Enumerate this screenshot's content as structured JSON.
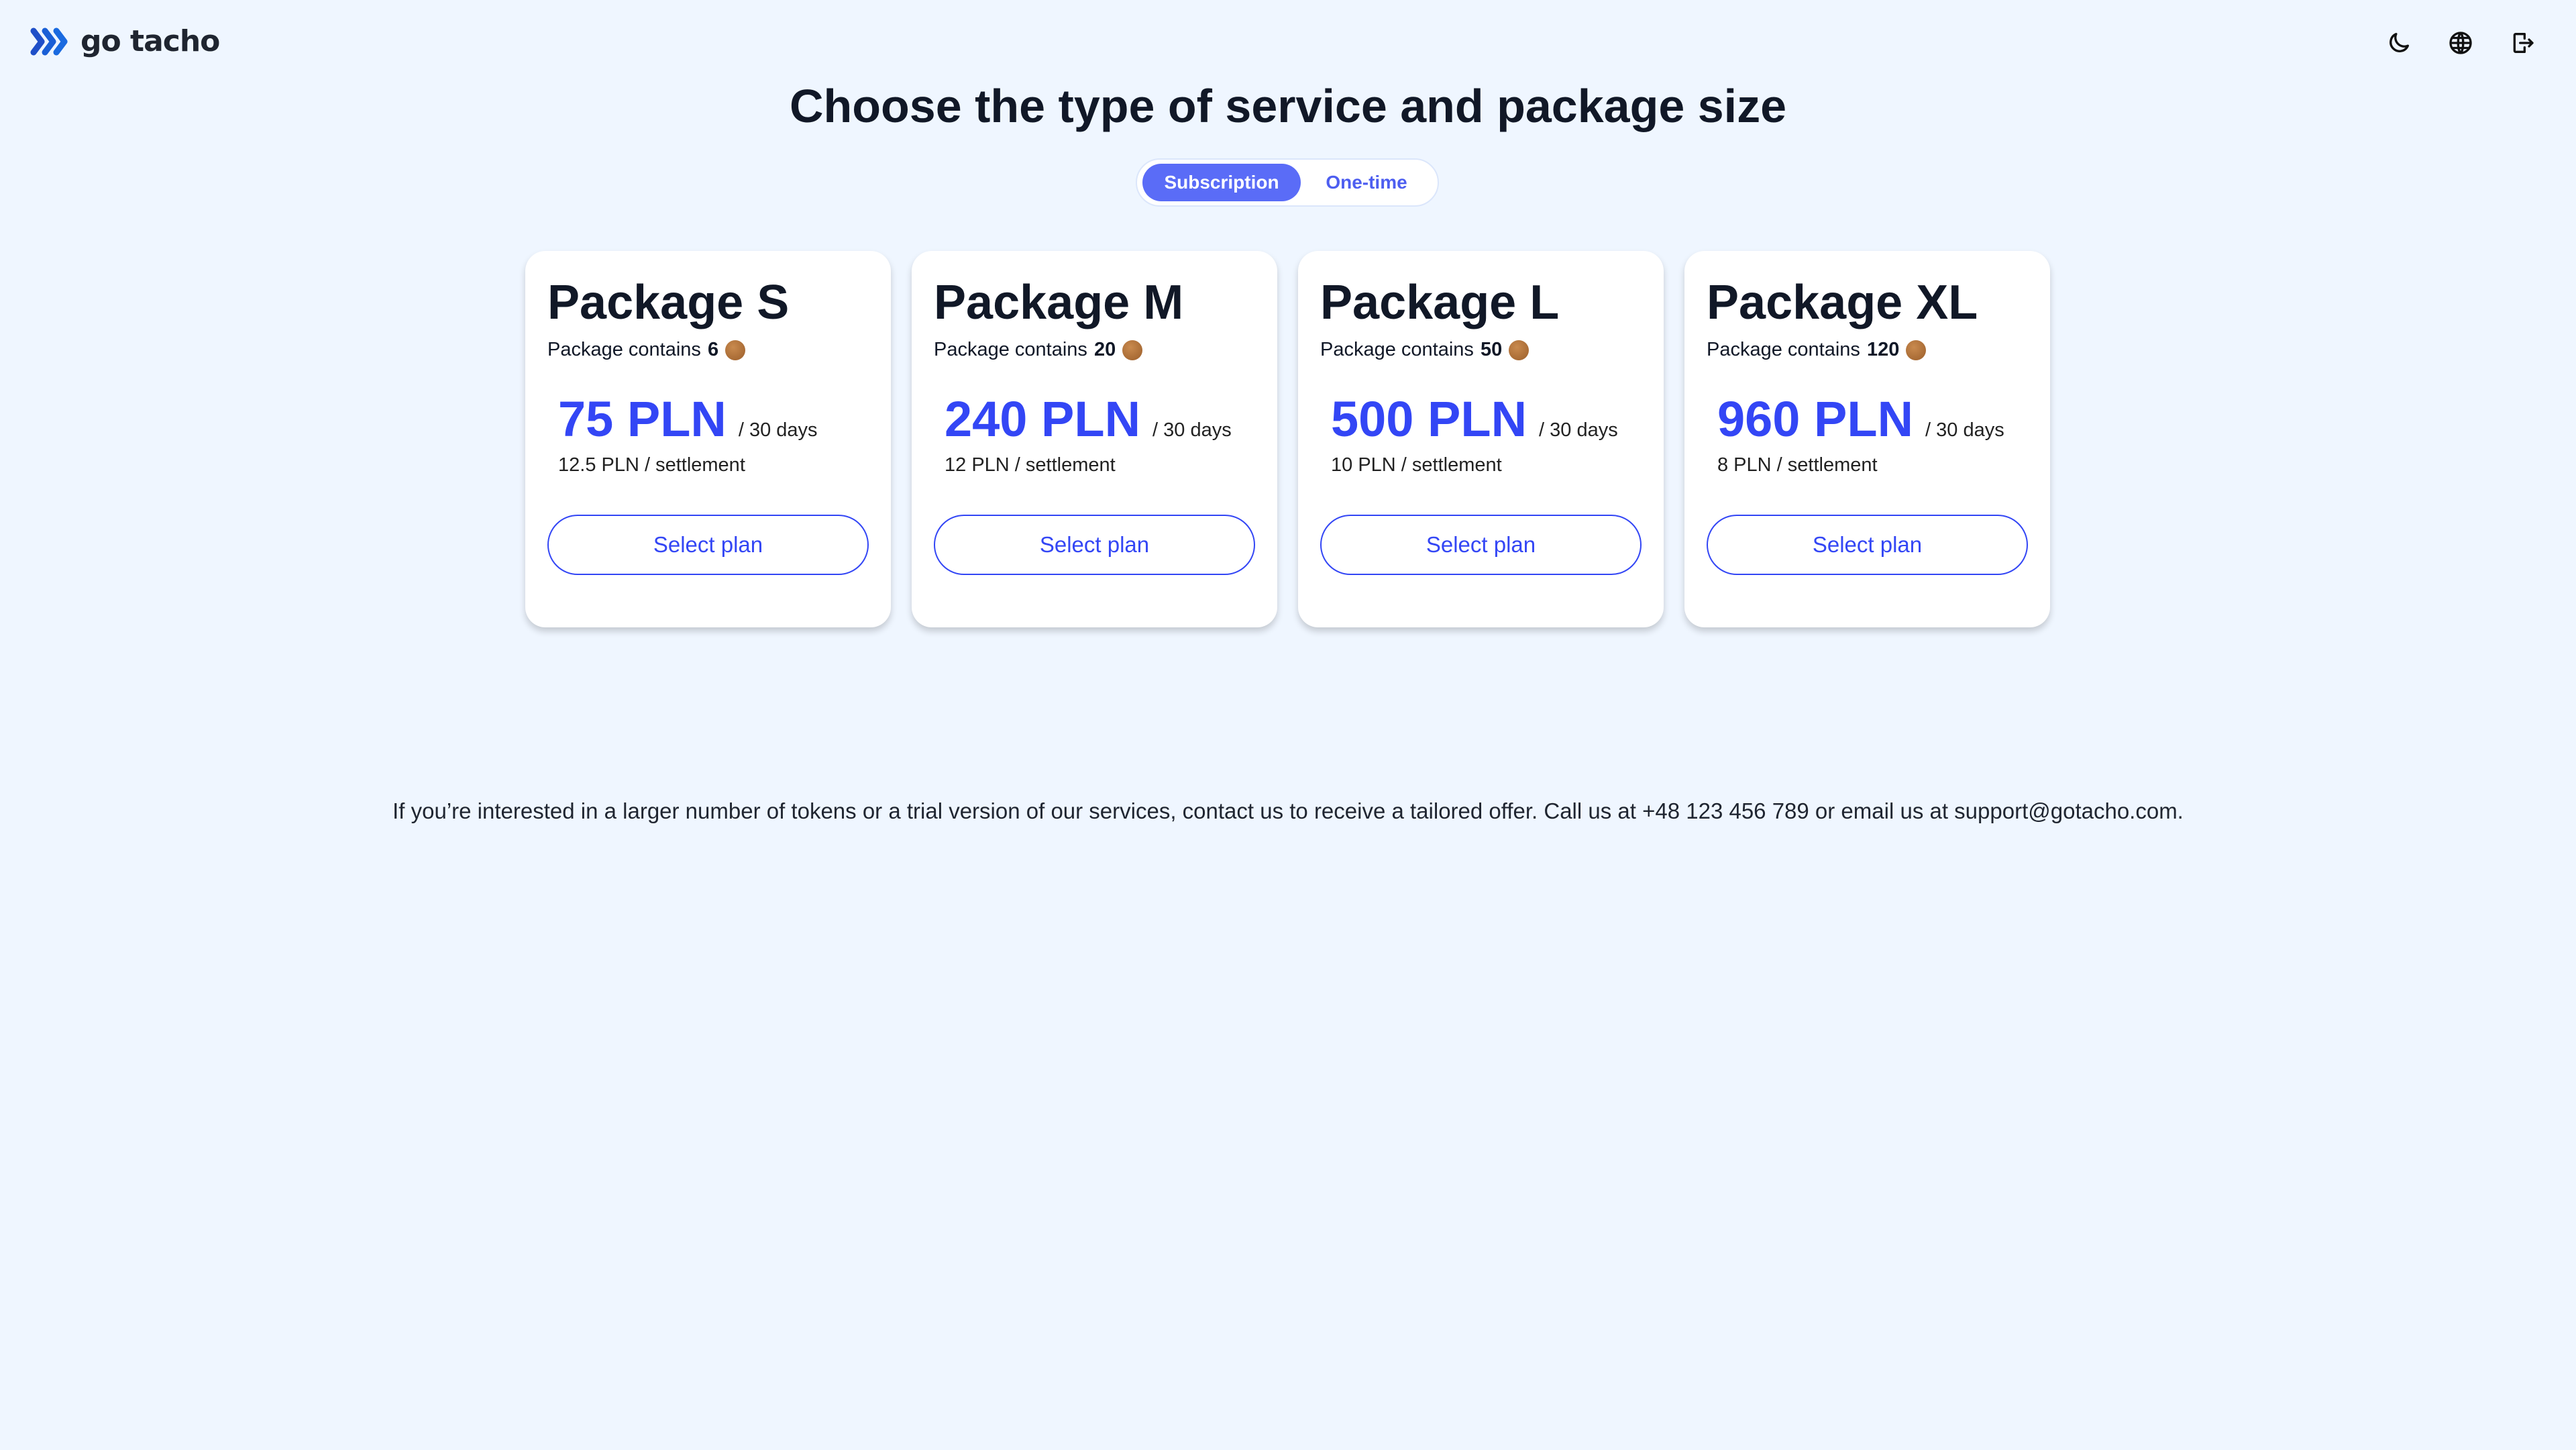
{
  "header": {
    "logo_text": "go tacho",
    "icons": [
      "moon-icon",
      "globe-icon",
      "logout-icon"
    ]
  },
  "title": "Choose the type of service and package size",
  "toggle": {
    "options": [
      {
        "label": "Subscription",
        "active": true
      },
      {
        "label": "One-time",
        "active": false
      }
    ]
  },
  "packages": [
    {
      "name": "Package S",
      "contains_label": "Package contains",
      "tokens": "6",
      "price": "75 PLN",
      "period": "/ 30 days",
      "per_settlement": "12.5 PLN / settlement",
      "button": "Select plan"
    },
    {
      "name": "Package M",
      "contains_label": "Package contains",
      "tokens": "20",
      "price": "240 PLN",
      "period": "/ 30 days",
      "per_settlement": "12 PLN / settlement",
      "button": "Select plan"
    },
    {
      "name": "Package L",
      "contains_label": "Package contains",
      "tokens": "50",
      "price": "500 PLN",
      "period": "/ 30 days",
      "per_settlement": "10 PLN / settlement",
      "button": "Select plan"
    },
    {
      "name": "Package XL",
      "contains_label": "Package contains",
      "tokens": "120",
      "price": "960 PLN",
      "period": "/ 30 days",
      "per_settlement": "8 PLN / settlement",
      "button": "Select plan"
    }
  ],
  "footer_text": "If you’re interested in a larger number of tokens or a trial version of our services, contact us to receive a tailored offer. Call us at +48 123 456 789 or email us at support@gotacho.com.",
  "colors": {
    "accent": "#3346f5",
    "toggle_active": "#5a6cf7",
    "background": "#eff6ff"
  }
}
